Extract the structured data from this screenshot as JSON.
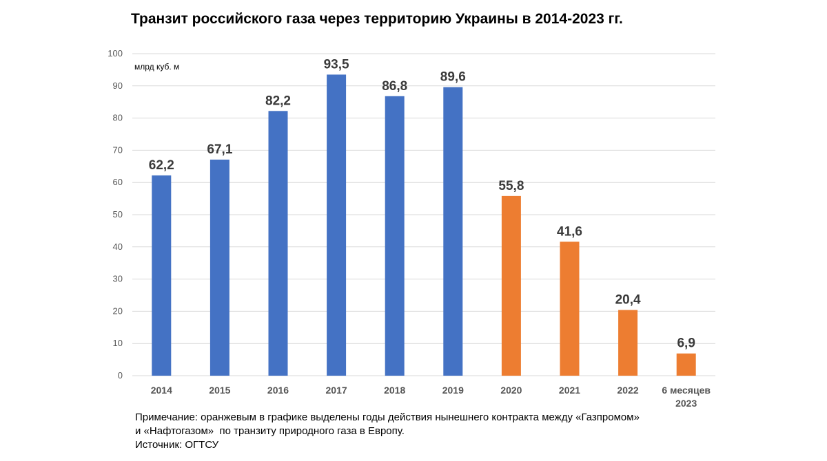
{
  "chart_data": {
    "type": "bar",
    "title": "Транзит российского газа через территорию Украины в 2014-2023 гг.",
    "unit_label": "млрд куб. м",
    "categories": [
      [
        "2014"
      ],
      [
        "2015"
      ],
      [
        "2016"
      ],
      [
        "2017"
      ],
      [
        "2018"
      ],
      [
        "2019"
      ],
      [
        "2020"
      ],
      [
        "2021"
      ],
      [
        "2022"
      ],
      [
        "6 месяцев",
        "2023"
      ]
    ],
    "values": [
      62.2,
      67.1,
      82.2,
      93.5,
      86.8,
      89.6,
      55.8,
      41.6,
      20.4,
      6.9
    ],
    "value_labels": [
      "62,2",
      "67,1",
      "82,2",
      "93,5",
      "86,8",
      "89,6",
      "55,8",
      "41,6",
      "20,4",
      "6,9"
    ],
    "highlighted": [
      false,
      false,
      false,
      false,
      false,
      false,
      true,
      true,
      true,
      true
    ],
    "colors": {
      "default": "#4472c4",
      "highlight": "#ed7d31",
      "grid": "#d9d9d9"
    },
    "ylim": [
      0,
      100
    ],
    "yticks": [
      0,
      10,
      20,
      30,
      40,
      50,
      60,
      70,
      80,
      90,
      100
    ],
    "grid": true,
    "legend": "none"
  },
  "note": {
    "line1": "Примечание: оранжевым в графике выделены годы действия нынешнего контракта между «Газпромом»",
    "line2": "и «Нафтогазом»  по транзиту природного газа в Европу.",
    "source": "Источник: ОГТСУ"
  }
}
